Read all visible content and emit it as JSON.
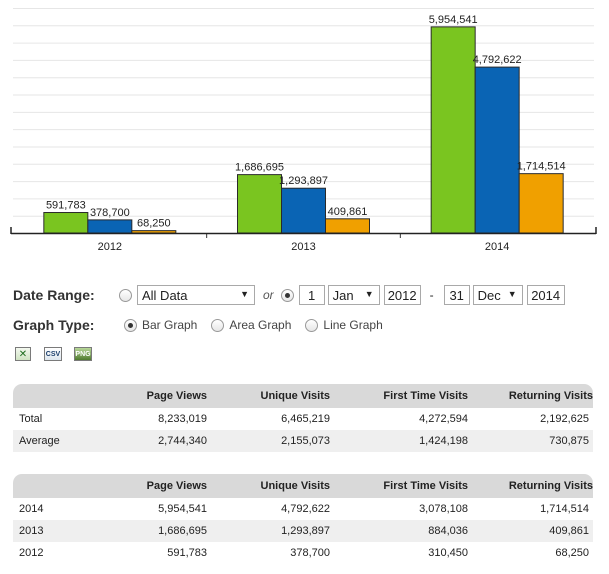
{
  "chart_data": {
    "type": "bar",
    "categories": [
      "2012",
      "2013",
      "2014"
    ],
    "series": [
      {
        "color": "#7ac520",
        "values": [
          591783,
          1686695,
          5954541
        ]
      },
      {
        "color": "#0a64b4",
        "values": [
          378700,
          1293897,
          4792622
        ]
      },
      {
        "color": "#f0a000",
        "values": [
          68250,
          409861,
          1714514
        ]
      }
    ],
    "data_labels": [
      [
        "591,783",
        "1,686,695",
        "5,954,541"
      ],
      [
        "378,700",
        "1,293,897",
        "4,792,622"
      ],
      [
        "68,250",
        "409,861",
        "1,714,514"
      ]
    ],
    "ylim": [
      0,
      6500000
    ],
    "grid": true
  },
  "controls": {
    "date_range_label": "Date Range:",
    "all_data_option": "All Data",
    "or_text": "or",
    "date_dash": "-",
    "start_day": "1",
    "start_month": "Jan",
    "start_year": "2012",
    "end_day": "31",
    "end_month": "Dec",
    "end_year": "2014",
    "graph_type_label": "Graph Type:",
    "bar_graph": "Bar Graph",
    "area_graph": "Area Graph",
    "line_graph": "Line Graph",
    "selected_range": "custom",
    "selected_graph": "bar"
  },
  "export": {
    "excel_icon": "excel-export-icon",
    "csv_icon": "csv-export-icon",
    "csv_text": "CSV",
    "png_icon": "png-export-icon",
    "png_text": "PNG"
  },
  "summary_table": {
    "headers": [
      "",
      "Page Views",
      "Unique Visits",
      "First Time Visits",
      "Returning Visits"
    ],
    "rows": [
      [
        "Total",
        "8,233,019",
        "6,465,219",
        "4,272,594",
        "2,192,625"
      ],
      [
        "Average",
        "2,744,340",
        "2,155,073",
        "1,424,198",
        "730,875"
      ]
    ]
  },
  "yearly_table": {
    "headers": [
      "",
      "Page Views",
      "Unique Visits",
      "First Time Visits",
      "Returning Visits"
    ],
    "rows": [
      [
        "2014",
        "5,954,541",
        "4,792,622",
        "3,078,108",
        "1,714,514"
      ],
      [
        "2013",
        "1,686,695",
        "1,293,897",
        "884,036",
        "409,861"
      ],
      [
        "2012",
        "591,783",
        "378,700",
        "310,450",
        "68,250"
      ]
    ]
  }
}
